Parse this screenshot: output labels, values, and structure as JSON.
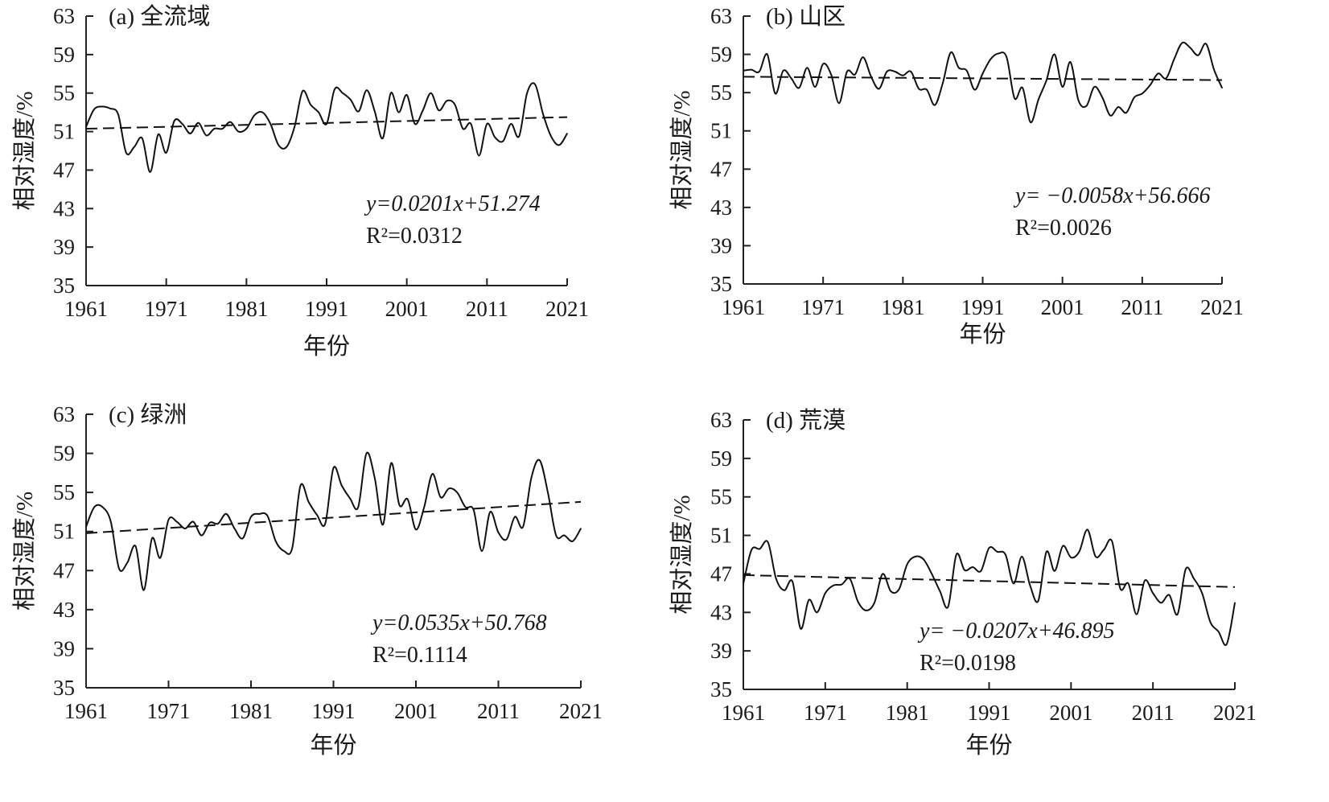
{
  "chart_data": [
    {
      "type": "line",
      "title": "(a) 全流域",
      "xlabel": "年份",
      "ylabel": "相对湿度/%",
      "xlim": [
        1961,
        2021
      ],
      "ylim": [
        35,
        63
      ],
      "xticks": [
        1961,
        1971,
        1981,
        1991,
        2001,
        2011,
        2021
      ],
      "yticks": [
        35,
        39,
        43,
        47,
        51,
        55,
        59,
        63
      ],
      "grid": false,
      "trend": {
        "slope": 0.0201,
        "intercept": 51.274
      },
      "equation": "y=0.0201x+51.274",
      "r2": "R²=0.0312",
      "x_start": 1961,
      "values": [
        51.5,
        53.3,
        53.6,
        53.4,
        52.8,
        48.8,
        49.4,
        50.3,
        46.8,
        50.7,
        48.8,
        52.1,
        51.8,
        50.8,
        51.9,
        50.6,
        51.3,
        51.3,
        52.0,
        51.0,
        51.3,
        52.7,
        53.0,
        51.8,
        49.6,
        49.4,
        51.5,
        55.2,
        53.8,
        53.0,
        51.8,
        55.4,
        55.0,
        54.3,
        53.1,
        55.3,
        53.1,
        50.3,
        55.0,
        53.0,
        54.8,
        51.8,
        53.2,
        55.0,
        53.2,
        54.2,
        53.8,
        51.3,
        51.8,
        48.5,
        51.8,
        50.4,
        50.0,
        51.8,
        50.5,
        55.0,
        55.9,
        52.8,
        50.5,
        49.6,
        50.8
      ]
    },
    {
      "type": "line",
      "title": "(b) 山区",
      "xlabel": "年份",
      "ylabel": "相对湿度/%",
      "xlim": [
        1961,
        2021
      ],
      "ylim": [
        35,
        63
      ],
      "xticks": [
        1961,
        1971,
        1981,
        1991,
        2001,
        2011,
        2021
      ],
      "yticks": [
        35,
        39,
        43,
        47,
        51,
        55,
        59,
        63
      ],
      "grid": false,
      "trend": {
        "slope": -0.0058,
        "intercept": 56.666
      },
      "equation": "y= −0.0058x+56.666",
      "r2": "R²=0.0026",
      "x_start": 1961,
      "values": [
        57.3,
        57.4,
        57.2,
        59.0,
        54.9,
        57.3,
        56.5,
        55.5,
        57.6,
        55.6,
        58.0,
        56.9,
        53.9,
        57.2,
        56.9,
        58.7,
        56.7,
        55.4,
        57.2,
        57.2,
        56.8,
        57.2,
        55.4,
        55.3,
        53.7,
        56.0,
        59.2,
        57.6,
        57.3,
        55.3,
        57.0,
        58.5,
        59.1,
        58.7,
        54.4,
        55.5,
        51.9,
        54.3,
        56.3,
        59.0,
        55.6,
        58.2,
        54.2,
        53.6,
        55.6,
        54.5,
        52.6,
        53.5,
        52.9,
        54.5,
        54.9,
        55.8,
        57.0,
        56.5,
        58.5,
        60.2,
        59.7,
        58.9,
        60.1,
        57.4,
        55.5
      ]
    },
    {
      "type": "line",
      "title": "(c) 绿洲",
      "xlabel": "年份",
      "ylabel": "相对湿度/%",
      "xlim": [
        1961,
        2021
      ],
      "ylim": [
        35,
        63
      ],
      "xticks": [
        1961,
        1971,
        1981,
        1991,
        2001,
        2011,
        2021
      ],
      "yticks": [
        35,
        39,
        43,
        47,
        51,
        55,
        59,
        63
      ],
      "grid": false,
      "trend": {
        "slope": 0.0535,
        "intercept": 50.768
      },
      "equation": "y=0.0535x+50.768",
      "r2": "R²=0.1114",
      "x_start": 1961,
      "values": [
        51.5,
        53.5,
        53.5,
        52.0,
        47.2,
        47.8,
        49.5,
        45.0,
        50.3,
        48.3,
        52.2,
        52.0,
        51.3,
        52.0,
        50.6,
        51.9,
        51.8,
        52.8,
        51.3,
        50.3,
        52.5,
        52.8,
        52.6,
        50.0,
        49.0,
        49.3,
        55.7,
        54.0,
        52.7,
        51.8,
        57.5,
        55.7,
        54.4,
        53.5,
        59.0,
        56.5,
        51.7,
        58.0,
        53.7,
        54.3,
        51.2,
        53.5,
        56.9,
        54.5,
        55.4,
        55.0,
        53.5,
        53.2,
        49.0,
        53.0,
        50.9,
        50.2,
        52.5,
        51.5,
        56.5,
        58.3,
        55.0,
        50.6,
        50.6,
        50.0,
        51.3
      ]
    },
    {
      "type": "line",
      "title": "(d) 荒漠",
      "xlabel": "年份",
      "ylabel": "相对湿度/%",
      "xlim": [
        1961,
        2021
      ],
      "ylim": [
        35,
        63
      ],
      "xticks": [
        1961,
        1971,
        1981,
        1991,
        2001,
        2011,
        2021
      ],
      "yticks": [
        35,
        39,
        43,
        47,
        51,
        55,
        59,
        63
      ],
      "grid": false,
      "trend": {
        "slope": -0.0207,
        "intercept": 46.895
      },
      "equation": "y= −0.0207x+46.895",
      "r2": "R²=0.0198",
      "x_start": 1961,
      "values": [
        46.0,
        49.5,
        49.6,
        50.3,
        46.5,
        45.3,
        46.2,
        41.3,
        44.3,
        43.0,
        45.0,
        45.8,
        45.9,
        46.5,
        44.1,
        43.2,
        44.0,
        47.0,
        45.2,
        45.4,
        48.0,
        48.8,
        48.5,
        47.0,
        45.2,
        43.6,
        49.0,
        47.4,
        47.7,
        47.3,
        49.7,
        49.3,
        49.0,
        46.0,
        48.8,
        45.8,
        44.2,
        49.3,
        47.3,
        49.9,
        48.7,
        49.3,
        51.6,
        48.8,
        49.5,
        50.4,
        45.5,
        46.0,
        42.8,
        46.3,
        45.0,
        44.0,
        44.8,
        42.8,
        47.5,
        46.5,
        45.0,
        42.0,
        41.0,
        39.7,
        44.0
      ]
    }
  ]
}
